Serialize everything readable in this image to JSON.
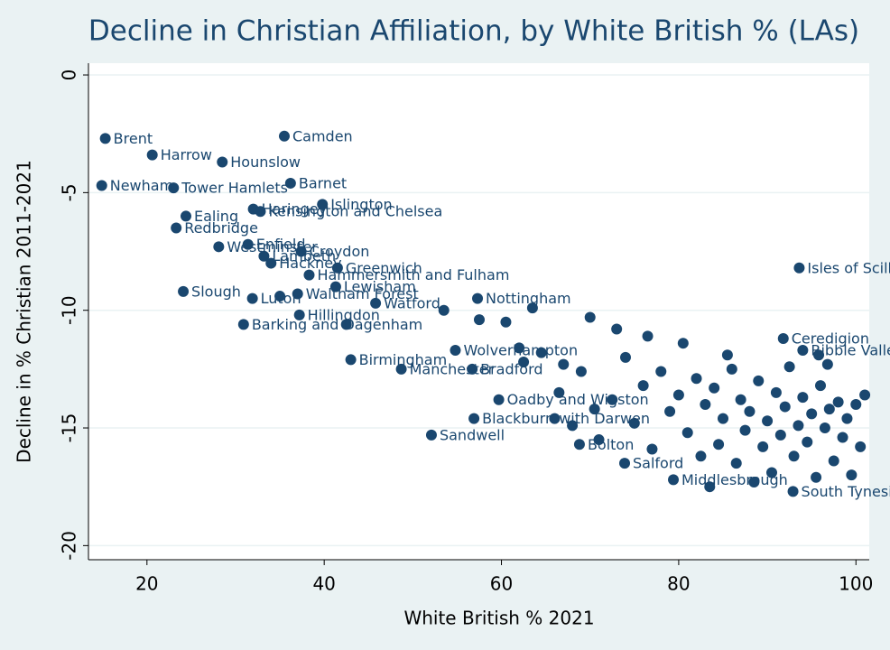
{
  "chart_data": {
    "type": "scatter",
    "title": "Decline in Christian Affiliation, by White British % (LAs)",
    "x_label": "White British % 2021",
    "y_label": "Decline in % Christian 2011-2021",
    "xlim": [
      13.4,
      101.5
    ],
    "ylim": [
      -20.6,
      0.5
    ],
    "xticks": [
      20,
      40,
      60,
      80,
      100
    ],
    "yticks": [
      0,
      -5,
      -10,
      -15,
      -20
    ],
    "grid": true,
    "series": [
      {
        "color": "#1a476f",
        "x": [
          15.3,
          20.6,
          28.5,
          35.5,
          14.9,
          23.0,
          36.2,
          39.8,
          32.0,
          32.8,
          24.4,
          23.3,
          28.1,
          31.4,
          37.4,
          33.2,
          34.0,
          41.5,
          38.3,
          41.3,
          24.1,
          31.9,
          37.0,
          45.8,
          57.3,
          37.2,
          30.9,
          93.6,
          91.8,
          94.0,
          54.8,
          43.0,
          48.7,
          56.7,
          59.7,
          56.9,
          52.1,
          68.8,
          73.9,
          79.4,
          92.9
        ],
        "values": [
          -2.7,
          -3.4,
          -3.7,
          -2.6,
          -4.7,
          -4.8,
          -4.6,
          -5.5,
          -5.7,
          -5.8,
          -6.0,
          -6.5,
          -7.3,
          -7.2,
          -7.5,
          -7.7,
          -8.0,
          -8.2,
          -8.5,
          -9.0,
          -9.2,
          -9.5,
          -9.3,
          -9.7,
          -9.5,
          -10.2,
          -10.6,
          -8.2,
          -11.2,
          -11.7,
          -11.7,
          -12.1,
          -12.5,
          -12.5,
          -13.8,
          -14.6,
          -15.3,
          -15.7,
          -16.5,
          -17.2,
          -17.7
        ],
        "labels": [
          "Brent",
          "Harrow",
          "Hounslow",
          "Camden",
          "Newham",
          "Tower Hamlets",
          "Barnet",
          "Islington",
          "Haringey",
          "Kensington and Chelsea",
          "Ealing",
          "Redbridge",
          "Westminster",
          "Enfield",
          "Croydon",
          "Lambeth",
          "Hackney",
          "Greenwich",
          "Hammersmith and Fulham",
          "Lewisham",
          "Slough",
          "Luton",
          "Waltham Forest",
          "Watford",
          "Nottingham",
          "Hillingdon",
          "Barking and Dagenham",
          "Isles of Scilly",
          "Ceredigion",
          "Ribble Valley",
          "Wolverhampton",
          "Birmingham",
          "Manchester",
          "Bradford",
          "Oadby and Wigston",
          "Blackburn with Darwen",
          "Sandwell",
          "Bolton",
          "Salford",
          "Middlesbrough",
          "South Tyneside"
        ]
      },
      {
        "color": "#1a476f",
        "x": [
          35.0,
          42.5,
          53.5,
          57.5,
          62.0,
          63.5,
          64.5,
          67.0,
          66.5,
          69.0,
          70.5,
          71.0,
          72.5,
          74.0,
          75.0,
          76.0,
          77.0,
          78.0,
          79.0,
          80.0,
          81.0,
          82.0,
          82.5,
          83.0,
          84.0,
          84.5,
          85.0,
          86.0,
          86.5,
          87.0,
          87.5,
          88.0,
          88.5,
          89.0,
          89.5,
          90.0,
          90.5,
          91.0,
          91.5,
          92.0,
          92.5,
          93.0,
          93.5,
          94.0,
          94.5,
          95.0,
          95.5,
          96.0,
          96.5,
          97.0,
          97.5,
          98.0,
          98.5,
          99.0,
          99.5,
          100.0,
          100.5,
          101.0,
          85.5,
          80.5,
          76.5,
          73.0,
          70.0,
          60.5,
          66.0,
          68.0,
          62.5,
          83.5,
          96.8,
          95.8
        ],
        "values": [
          -9.4,
          -10.6,
          -10.0,
          -10.4,
          -11.6,
          -9.9,
          -11.8,
          -12.3,
          -13.5,
          -12.6,
          -14.2,
          -15.5,
          -13.8,
          -12.0,
          -14.8,
          -13.2,
          -15.9,
          -12.6,
          -14.3,
          -13.6,
          -15.2,
          -12.9,
          -16.2,
          -14.0,
          -13.3,
          -15.7,
          -14.6,
          -12.5,
          -16.5,
          -13.8,
          -15.1,
          -14.3,
          -17.3,
          -13.0,
          -15.8,
          -14.7,
          -16.9,
          -13.5,
          -15.3,
          -14.1,
          -12.4,
          -16.2,
          -14.9,
          -13.7,
          -15.6,
          -14.4,
          -17.1,
          -13.2,
          -15.0,
          -14.2,
          -16.4,
          -13.9,
          -15.4,
          -14.6,
          -17.0,
          -14.0,
          -15.8,
          -13.6,
          -11.9,
          -11.4,
          -11.1,
          -10.8,
          -10.3,
          -10.5,
          -14.6,
          -14.9,
          -12.2,
          -17.5,
          -12.3,
          -11.9
        ]
      }
    ]
  }
}
